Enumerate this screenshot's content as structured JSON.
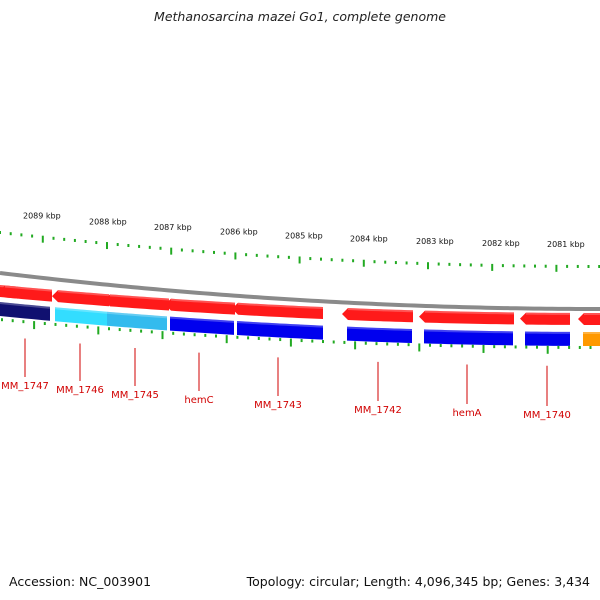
{
  "title": "Methanosarcina mazei Go1, complete genome",
  "footer": {
    "accession": "Accession: NC_003901",
    "summary": "Topology: circular; Length: 4,096,345 bp; Genes: 3,434"
  },
  "colors": {
    "forward_gene": "#ff1a1a",
    "reverse_gene": "#0000ee",
    "reverse_gene_dark": "#101070",
    "reverse_gene_cyan": "#33ddff",
    "reverse_gene_lightblue": "#33bbee",
    "other_gene": "#ff9900",
    "backbone": "#8a8a8a",
    "tick": "#22aa22",
    "label": "#d10000"
  },
  "scale_labels": [
    "2089 kbp",
    "2088 kbp",
    "2087 kbp",
    "2086 kbp",
    "2085 kbp",
    "2084 kbp",
    "2083 kbp",
    "2082 kbp",
    "2081 kbp"
  ],
  "forward_genes": [
    {
      "start": 0,
      "end": 18,
      "color": "#ff1a1a"
    },
    {
      "start": 5,
      "end": 52,
      "color": "#ff1a1a"
    },
    {
      "start": 58,
      "end": 109,
      "color": "#ff1a1a"
    },
    {
      "start": 110,
      "end": 169,
      "color": "#ff1a1a"
    },
    {
      "start": 171,
      "end": 235,
      "color": "#ff1a1a"
    },
    {
      "start": 238,
      "end": 323,
      "color": "#ff1a1a"
    },
    {
      "start": 348,
      "end": 413,
      "color": "#ff1a1a"
    },
    {
      "start": 425,
      "end": 514,
      "color": "#ff1a1a"
    },
    {
      "start": 526,
      "end": 570,
      "color": "#ff1a1a"
    },
    {
      "start": 584,
      "end": 600,
      "color": "#ff1a1a"
    }
  ],
  "reverse_genes": [
    {
      "start": 0,
      "end": 50,
      "color": "#101070"
    },
    {
      "start": 55,
      "end": 107,
      "color": "#33ddff"
    },
    {
      "start": 107,
      "end": 167,
      "color": "#33bbee"
    },
    {
      "start": 170,
      "end": 234,
      "color": "#0000ee"
    },
    {
      "start": 237,
      "end": 323,
      "color": "#0000ee"
    },
    {
      "start": 347,
      "end": 412,
      "color": "#0000ee"
    },
    {
      "start": 424,
      "end": 513,
      "color": "#0000ee"
    },
    {
      "start": 525,
      "end": 570,
      "color": "#0000ee"
    },
    {
      "start": 583,
      "end": 600,
      "color": "#ff9900"
    }
  ],
  "gene_labels": [
    "MM_1747",
    "MM_1746",
    "MM_1745",
    "hemC",
    "MM_1743",
    "MM_1742",
    "hemA",
    "MM_1740"
  ]
}
